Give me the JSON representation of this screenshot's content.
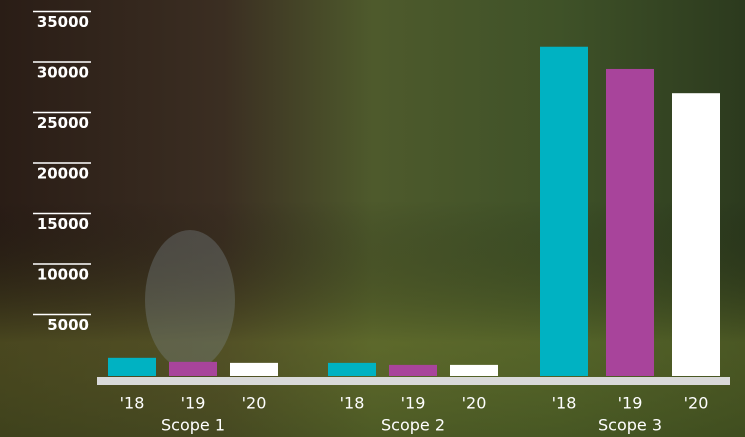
{
  "chart_data": {
    "type": "bar",
    "categories": [
      "Scope 1",
      "Scope 2",
      "Scope 3"
    ],
    "series": [
      {
        "name": "'18",
        "color": "#00b2c2",
        "values": [
          1800,
          1300,
          32600
        ]
      },
      {
        "name": "'19",
        "color": "#a8449b",
        "values": [
          1400,
          1100,
          30400
        ]
      },
      {
        "name": "'20",
        "color": "#ffffff",
        "values": [
          1300,
          1100,
          28000
        ]
      }
    ],
    "ylim": [
      0,
      35000
    ],
    "yticks": [
      5000,
      10000,
      15000,
      20000,
      25000,
      30000,
      35000
    ]
  }
}
